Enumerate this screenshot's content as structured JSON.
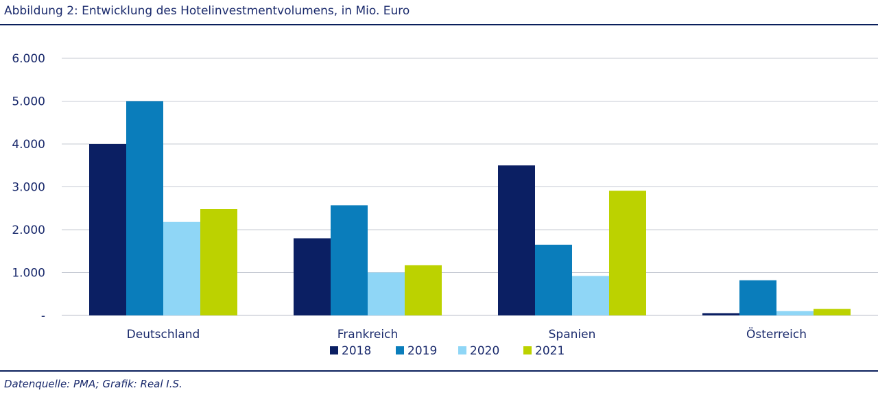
{
  "header": {
    "title": "Abbildung 2: Entwicklung des Hotelinvestmentvolumens, in Mio. Euro"
  },
  "footer": {
    "source": "Datenquelle: PMA; Grafik: Real I.S."
  },
  "chart_data": {
    "type": "bar",
    "title": "Abbildung 2: Entwicklung des Hotelinvestmentvolumens, in Mio. Euro",
    "xlabel": "",
    "ylabel": "",
    "categories": [
      "Deutschland",
      "Frankreich",
      "Spanien",
      "Österreich"
    ],
    "series": [
      {
        "name": "2018",
        "color": "#0b1f63",
        "values": [
          4000,
          1800,
          3500,
          50
        ]
      },
      {
        "name": "2019",
        "color": "#0a7dbb",
        "values": [
          5000,
          2570,
          1650,
          820
        ]
      },
      {
        "name": "2020",
        "color": "#8fd6f6",
        "values": [
          2180,
          1000,
          920,
          100
        ]
      },
      {
        "name": "2021",
        "color": "#bcd200",
        "values": [
          2480,
          1170,
          2910,
          150
        ]
      }
    ],
    "ylim": [
      0,
      6000
    ],
    "yticks": [
      0,
      1000,
      2000,
      3000,
      4000,
      5000,
      6000
    ],
    "ytick_labels": [
      "-",
      "1.000",
      "2.000",
      "3.000",
      "4.000",
      "5.000",
      "6.000"
    ],
    "grid": true,
    "legend_position": "bottom-center"
  }
}
